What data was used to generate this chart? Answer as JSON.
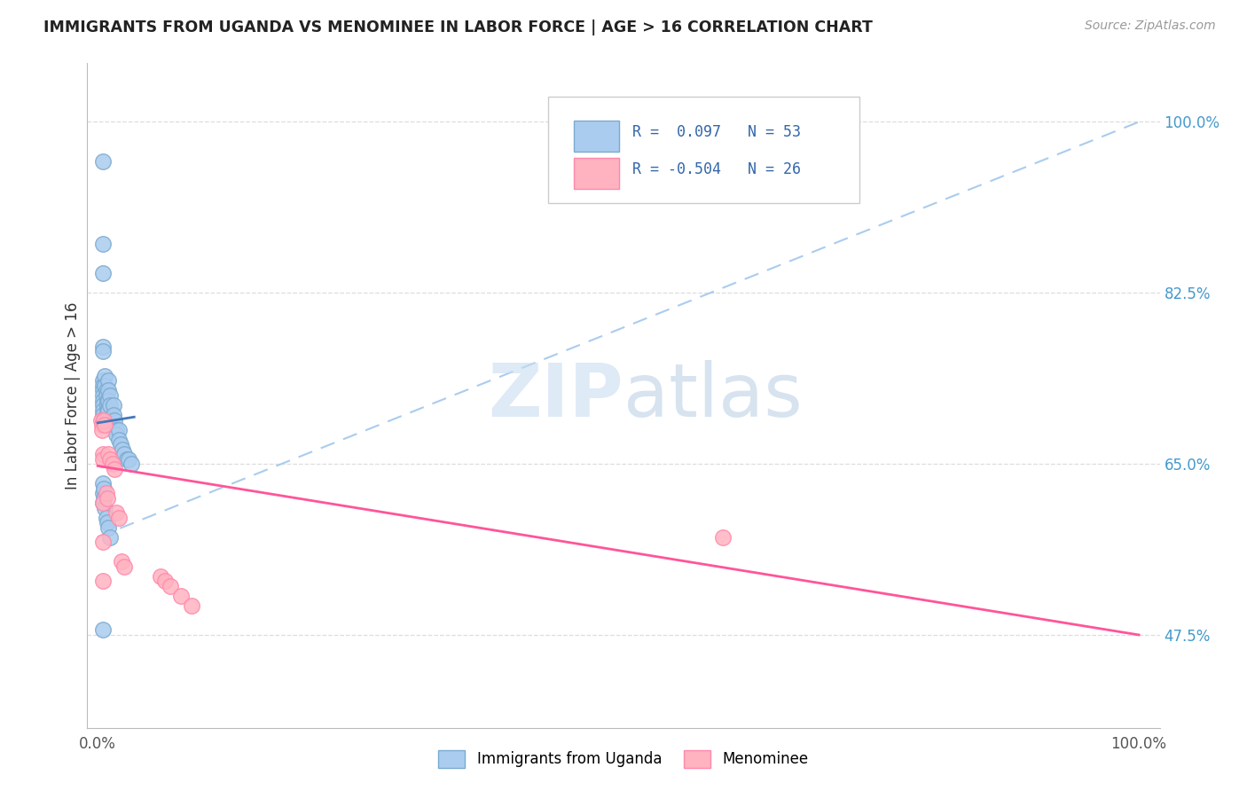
{
  "title": "IMMIGRANTS FROM UGANDA VS MENOMINEE IN LABOR FORCE | AGE > 16 CORRELATION CHART",
  "source": "Source: ZipAtlas.com",
  "ylabel": "In Labor Force | Age > 16",
  "xlim": [
    -0.01,
    1.02
  ],
  "ylim": [
    0.38,
    1.06
  ],
  "y_tick_right_values": [
    0.475,
    0.65,
    0.825,
    1.0
  ],
  "y_tick_right_labels": [
    "47.5%",
    "65.0%",
    "82.5%",
    "100.0%"
  ],
  "blue_R": 0.097,
  "blue_N": 53,
  "pink_R": -0.504,
  "pink_N": 26,
  "blue_color": "#AACCEE",
  "pink_color": "#FFB3C1",
  "blue_edge_color": "#7AAAD0",
  "pink_edge_color": "#FF88AA",
  "blue_line_color": "#4477BB",
  "pink_line_color": "#FF5599",
  "blue_dash_color": "#AACCEE",
  "legend_blue_fill": "#AACCEE",
  "legend_pink_fill": "#FFB3C1",
  "blue_x": [
    0.005,
    0.005,
    0.005,
    0.005,
    0.005,
    0.005,
    0.005,
    0.005,
    0.005,
    0.005,
    0.005,
    0.005,
    0.005,
    0.005,
    0.005,
    0.007,
    0.007,
    0.008,
    0.008,
    0.009,
    0.009,
    0.009,
    0.01,
    0.01,
    0.01,
    0.01,
    0.012,
    0.012,
    0.014,
    0.015,
    0.015,
    0.016,
    0.018,
    0.018,
    0.02,
    0.02,
    0.022,
    0.024,
    0.025,
    0.028,
    0.03,
    0.032,
    0.005,
    0.005,
    0.005,
    0.006,
    0.006,
    0.007,
    0.008,
    0.009,
    0.01,
    0.012,
    0.005
  ],
  "blue_y": [
    0.96,
    0.875,
    0.845,
    0.77,
    0.765,
    0.735,
    0.73,
    0.725,
    0.72,
    0.715,
    0.71,
    0.705,
    0.7,
    0.695,
    0.69,
    0.74,
    0.73,
    0.725,
    0.72,
    0.715,
    0.71,
    0.705,
    0.735,
    0.725,
    0.715,
    0.705,
    0.72,
    0.71,
    0.695,
    0.71,
    0.7,
    0.695,
    0.685,
    0.68,
    0.685,
    0.675,
    0.67,
    0.665,
    0.66,
    0.655,
    0.655,
    0.65,
    0.63,
    0.62,
    0.61,
    0.625,
    0.615,
    0.605,
    0.595,
    0.59,
    0.585,
    0.575,
    0.48
  ],
  "pink_x": [
    0.003,
    0.004,
    0.004,
    0.005,
    0.005,
    0.005,
    0.005,
    0.005,
    0.006,
    0.007,
    0.008,
    0.009,
    0.01,
    0.012,
    0.014,
    0.016,
    0.018,
    0.02,
    0.023,
    0.025,
    0.06,
    0.065,
    0.07,
    0.08,
    0.09,
    0.6
  ],
  "pink_y": [
    0.695,
    0.69,
    0.685,
    0.66,
    0.655,
    0.61,
    0.57,
    0.53,
    0.695,
    0.69,
    0.62,
    0.615,
    0.66,
    0.655,
    0.65,
    0.645,
    0.6,
    0.595,
    0.55,
    0.545,
    0.535,
    0.53,
    0.525,
    0.515,
    0.505,
    0.575
  ],
  "blue_line_x0": 0.0,
  "blue_line_x1": 0.035,
  "blue_line_y0": 0.692,
  "blue_line_y1": 0.698,
  "pink_line_x0": 0.0,
  "pink_line_x1": 1.0,
  "pink_line_y0": 0.648,
  "pink_line_y1": 0.475,
  "dash_line_x0": 0.0,
  "dash_line_x1": 1.0,
  "dash_line_y0": 0.575,
  "dash_line_y1": 1.0
}
